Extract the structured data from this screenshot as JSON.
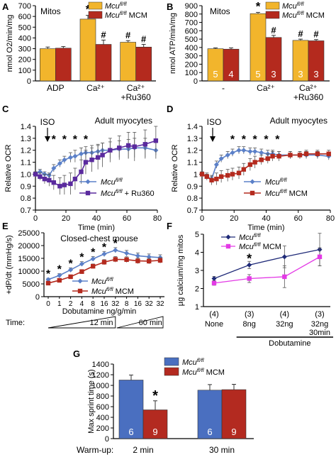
{
  "colors": {
    "gold": "#F2B52C",
    "red": "#B42A1E",
    "blue": "#5B80C8",
    "purple": "#5A2A9E",
    "navy": "#1F2A78",
    "magenta": "#E33AE5",
    "barBlue": "#4A6FC0",
    "barRed": "#B32A20"
  },
  "chart_data": [
    {
      "panel": "A",
      "type": "bar",
      "annotation": "Mitos",
      "ylabel": "nmol O2/min/mg",
      "ylim": [
        0,
        700
      ],
      "yticks": [
        0,
        100,
        200,
        300,
        400,
        500,
        600,
        700
      ],
      "categories": [
        "ADP",
        "Ca²⁺",
        "Ca²⁺\n+Ru360"
      ],
      "series": [
        {
          "name": "Mcu fl/fl",
          "values": [
            300,
            575,
            360
          ],
          "errors": [
            15,
            35,
            15
          ],
          "marks": [
            "",
            "*",
            "#"
          ]
        },
        {
          "name": "Mcu fl/fl MCM",
          "values": [
            305,
            340,
            315
          ],
          "errors": [
            15,
            40,
            25
          ],
          "marks": [
            "",
            "#",
            "#"
          ]
        }
      ],
      "legend": [
        "Mcu fl/fl",
        "Mcu fl/fl MCM"
      ]
    },
    {
      "panel": "B",
      "type": "bar",
      "annotation": "Mitos",
      "ylabel": "nmol ATP/min/mg",
      "ylim": [
        0,
        900
      ],
      "yticks": [
        0,
        100,
        200,
        300,
        400,
        500,
        600,
        700,
        800,
        900
      ],
      "categories": [
        "-",
        "Ca²⁺",
        "Ca²⁺\n+Ru360"
      ],
      "series": [
        {
          "name": "Mcu fl/fl",
          "values": [
            385,
            805,
            485
          ],
          "errors": [
            10,
            15,
            15
          ],
          "n": [
            "5",
            "5",
            "3"
          ],
          "marks": [
            "",
            "*",
            "#"
          ]
        },
        {
          "name": "Mcu fl/fl MCM",
          "values": [
            380,
            520,
            480
          ],
          "errors": [
            15,
            25,
            15
          ],
          "n": [
            "4",
            "3",
            "3"
          ],
          "marks": [
            "",
            "#",
            "#"
          ]
        }
      ],
      "legend": [
        "Mcu fl/fl",
        "Mcu fl/fl MCM"
      ]
    },
    {
      "panel": "C",
      "type": "line",
      "annotation": "Adult myocytes",
      "arrow": "ISO",
      "xlabel": "Time (min)",
      "ylabel": "Relative OCR",
      "xlim": [
        0,
        80
      ],
      "ylim": [
        0.7,
        1.4
      ],
      "xticks": [
        0,
        20,
        40,
        60,
        80
      ],
      "yticks": [
        0.7,
        0.8,
        0.9,
        1.0,
        1.1,
        1.2,
        1.3,
        1.4
      ],
      "ytick_labels": [
        "0.7",
        "0.8",
        "0.9",
        "1.0",
        "1.1",
        "1.2",
        "1.3",
        "1.4"
      ],
      "stars": [
        12,
        19,
        26,
        33
      ],
      "series": [
        {
          "name": "Mcu fl/fl",
          "x": [
            0,
            3,
            6,
            9,
            12,
            16,
            19,
            23,
            26,
            30,
            33,
            37,
            41,
            44,
            49,
            55,
            61,
            65,
            72,
            79
          ],
          "y": [
            1.0,
            1.02,
            1.0,
            0.99,
            1.05,
            1.09,
            1.12,
            1.14,
            1.15,
            1.17,
            1.18,
            1.18,
            1.19,
            1.2,
            1.2,
            1.21,
            1.21,
            1.22,
            1.22,
            1.2
          ],
          "errors": [
            0.02,
            0.02,
            0.02,
            0.02,
            0.03,
            0.03,
            0.03,
            0.04,
            0.05,
            0.05,
            0.05,
            0.06,
            0.06,
            0.06,
            0.07,
            0.07,
            0.08,
            0.08,
            0.08,
            0.07
          ]
        },
        {
          "name": "Mcu fl/fl + Ru360",
          "x": [
            0,
            3,
            6,
            9,
            12,
            16,
            19,
            23,
            26,
            30,
            33,
            37,
            41,
            44,
            49,
            55,
            61,
            65,
            72,
            79
          ],
          "y": [
            1.0,
            0.98,
            0.96,
            0.95,
            0.93,
            0.9,
            0.91,
            0.92,
            0.96,
            1.02,
            1.1,
            1.12,
            1.14,
            1.16,
            1.2,
            1.22,
            1.24,
            1.23,
            1.25,
            1.28
          ],
          "errors": [
            0.02,
            0.03,
            0.04,
            0.05,
            0.06,
            0.07,
            0.08,
            0.09,
            0.09,
            0.1,
            0.1,
            0.1,
            0.1,
            0.1,
            0.1,
            0.1,
            0.11,
            0.12,
            0.12,
            0.12
          ]
        }
      ],
      "legend": [
        "Mcu fl/fl",
        "Mcu fl/fl + Ru360"
      ]
    },
    {
      "panel": "D",
      "type": "line",
      "annotation": "Adult myocytes",
      "arrow": "ISO",
      "xlabel": "Time (min)",
      "ylabel": "Relative OCR",
      "xlim": [
        0,
        80
      ],
      "ylim": [
        0.7,
        1.4
      ],
      "xticks": [
        0,
        20,
        40,
        60,
        80
      ],
      "yticks": [
        0.7,
        0.8,
        0.9,
        1.0,
        1.1,
        1.2,
        1.3,
        1.4
      ],
      "ytick_labels": [
        "0.7",
        "0.8",
        "0.9",
        "1",
        "1.1",
        "1.2",
        "1.3",
        "1.4"
      ],
      "stars": [
        19,
        26,
        33,
        40,
        47
      ],
      "series": [
        {
          "name": "Mcu fl/fl",
          "x": [
            0,
            3,
            6,
            9,
            12,
            16,
            19,
            23,
            26,
            30,
            33,
            37,
            41,
            44,
            48,
            55,
            61,
            65,
            72,
            79
          ],
          "y": [
            1.0,
            0.98,
            0.96,
            1.08,
            1.13,
            1.16,
            1.18,
            1.2,
            1.2,
            1.19,
            1.19,
            1.18,
            1.17,
            1.17,
            1.16,
            1.16,
            1.16,
            1.16,
            1.16,
            1.15
          ],
          "errors": [
            0.02,
            0.02,
            0.02,
            0.03,
            0.03,
            0.03,
            0.03,
            0.03,
            0.03,
            0.03,
            0.03,
            0.03,
            0.03,
            0.03,
            0.03,
            0.03,
            0.03,
            0.03,
            0.03,
            0.03
          ]
        },
        {
          "name": "Mcu fl/fl MCM",
          "x": [
            0,
            3,
            6,
            9,
            12,
            16,
            19,
            23,
            26,
            30,
            33,
            37,
            41,
            44,
            48,
            55,
            61,
            65,
            72,
            79
          ],
          "y": [
            1.0,
            0.98,
            0.95,
            0.96,
            0.98,
            0.99,
            1.0,
            1.01,
            1.04,
            1.08,
            1.1,
            1.12,
            1.13,
            1.15,
            1.15,
            1.16,
            1.16,
            1.17,
            1.17,
            1.17
          ],
          "errors": [
            0.02,
            0.03,
            0.04,
            0.05,
            0.05,
            0.05,
            0.05,
            0.05,
            0.05,
            0.05,
            0.05,
            0.04,
            0.04,
            0.04,
            0.04,
            0.03,
            0.03,
            0.03,
            0.03,
            0.03
          ]
        }
      ],
      "legend": [
        "Mcu fl/fl",
        "Mcu fl/fl MCM"
      ]
    },
    {
      "panel": "E",
      "type": "line",
      "annotation": "Closed-chest mouse",
      "xlabel": "Dobutamine ng/g/min",
      "ylabel": "+dP/dt (mmHg/s)",
      "ylim": [
        0,
        25000
      ],
      "yticks": [
        0,
        5000,
        10000,
        15000,
        20000,
        25000
      ],
      "categories": [
        "0",
        "1",
        "2",
        "4",
        "8",
        "16",
        "32",
        "8",
        "16",
        "32",
        "32"
      ],
      "stars": [
        0,
        1,
        2,
        3,
        4,
        5,
        6
      ],
      "time_label": "Time:",
      "time_ramps": [
        "12 min",
        "60 min"
      ],
      "series": [
        {
          "name": "Mcu fl/fl",
          "values": [
            6700,
            8300,
            10500,
            12800,
            14800,
            16700,
            18200,
            17000,
            16000,
            15600,
            15300
          ],
          "errors": [
            500,
            700,
            800,
            900,
            900,
            1000,
            1000,
            1100,
            1100,
            1100,
            1100
          ]
        },
        {
          "name": "Mcu fl/fl MCM",
          "values": [
            5300,
            6400,
            7800,
            9800,
            11900,
            13500,
            14600,
            14500,
            14000,
            13900,
            14200
          ],
          "errors": [
            500,
            600,
            700,
            800,
            900,
            1000,
            1100,
            1100,
            1100,
            1100,
            1100
          ]
        }
      ],
      "legend": [
        "Mcu fl/fl",
        "Mcu fl/fl MCM"
      ]
    },
    {
      "panel": "F",
      "type": "line",
      "xlabel": "Dobutamine",
      "ylabel": "µg calcium/mg mitos",
      "ylim": [
        1,
        5
      ],
      "yticks": [
        1,
        2,
        3,
        4,
        5
      ],
      "categories": [
        "None",
        "8ng",
        "32ng",
        "32ng\n30min"
      ],
      "n": [
        "(4)",
        "(3)",
        "(4)",
        "(3)"
      ],
      "stars": [
        1
      ],
      "series": [
        {
          "name": "Mcu fl/fl",
          "values": [
            2.55,
            3.3,
            3.75,
            4.15
          ],
          "errors": [
            0.12,
            0.2,
            0.6,
            0.9
          ]
        },
        {
          "name": "Mcu fl/fl MCM",
          "values": [
            2.3,
            2.55,
            2.65,
            3.75
          ],
          "errors": [
            0.12,
            0.22,
            0.6,
            0.5
          ]
        }
      ],
      "legend": [
        "Mcu fl/fl",
        "Mcu fl/fl MCM"
      ]
    },
    {
      "panel": "G",
      "type": "bar",
      "ylabel": "Max sprint time (s)",
      "ylim": [
        0,
        1400
      ],
      "yticks": [
        0,
        200,
        400,
        600,
        800,
        1000,
        1200,
        1400
      ],
      "categories": [
        "2 min",
        "30 min"
      ],
      "xprefix": "Warm-up:",
      "series": [
        {
          "name": "Mcu fl/fl",
          "values": [
            1100,
            910
          ],
          "errors": [
            95,
            105
          ],
          "n": [
            "6",
            "6"
          ],
          "marks": [
            "",
            ""
          ]
        },
        {
          "name": "Mcu fl/fl MCM",
          "values": [
            540,
            920
          ],
          "errors": [
            170,
            100
          ],
          "n": [
            "9",
            "9"
          ],
          "marks": [
            "*",
            ""
          ]
        }
      ],
      "legend": [
        "Mcu fl/fl",
        "Mcu fl/fl MCM"
      ]
    }
  ],
  "legend_text": {
    "gene": "Mcu",
    "sup": "fl/fl",
    "mcm": " MCM",
    "ru": " + Ru360"
  }
}
